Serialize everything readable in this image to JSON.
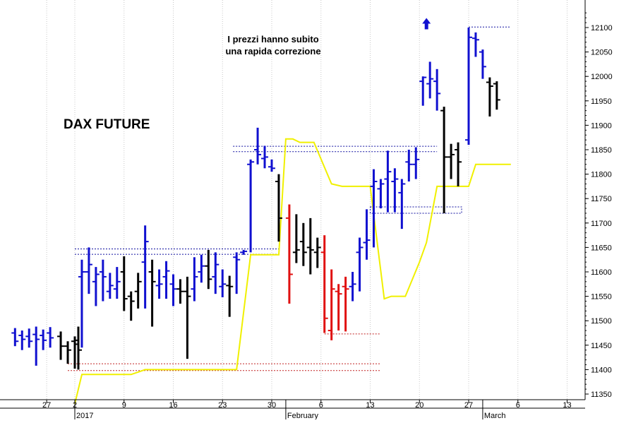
{
  "chart_data": {
    "type": "ohlc",
    "title": "DAX FUTURE",
    "annotation": "I prezzi hanno subito\nuna rapida correzione",
    "ylim": [
      11325,
      12140
    ],
    "y_ticks": [
      11350,
      11400,
      11450,
      11500,
      11550,
      11600,
      11650,
      11700,
      11750,
      11800,
      11850,
      11900,
      11950,
      12000,
      12050,
      12100
    ],
    "x_ticks": [
      {
        "day": -2,
        "label": "27"
      },
      {
        "day": 2,
        "label": "2"
      },
      {
        "day": 9,
        "label": "9"
      },
      {
        "day": 16,
        "label": "16"
      },
      {
        "day": 23,
        "label": "23"
      },
      {
        "day": 30,
        "label": "30"
      },
      {
        "day": 37,
        "label": "6"
      },
      {
        "day": 44,
        "label": "13"
      },
      {
        "day": 51,
        "label": "20"
      },
      {
        "day": 58,
        "label": "27"
      },
      {
        "day": 65,
        "label": "6"
      },
      {
        "day": 72,
        "label": "13"
      }
    ],
    "period_labels": [
      {
        "day": 2,
        "label": "2017"
      },
      {
        "day": 32,
        "label": "February"
      },
      {
        "day": 60,
        "label": "March"
      }
    ],
    "x_range": [
      -7,
      74
    ],
    "colors": {
      "blue": "#1010d0",
      "black": "#000000",
      "red": "#e01010",
      "yellow": "#f0f000",
      "grid": "#c8c8c8",
      "ref_blue": "#1010a0",
      "ref_red": "#c02020",
      "arrow": "#1010d0"
    },
    "bars": [
      {
        "day": -6.5,
        "h": 11485,
        "l": 11448,
        "o": 11475,
        "c": 11458,
        "color": "blue"
      },
      {
        "day": -5.5,
        "h": 11480,
        "l": 11440,
        "o": 11470,
        "c": 11462,
        "color": "blue"
      },
      {
        "day": -4.5,
        "h": 11484,
        "l": 11445,
        "o": 11468,
        "c": 11458,
        "color": "blue"
      },
      {
        "day": -3.5,
        "h": 11488,
        "l": 11408,
        "o": 11472,
        "c": 11462,
        "color": "blue"
      },
      {
        "day": -2.5,
        "h": 11482,
        "l": 11440,
        "o": 11470,
        "c": 11460,
        "color": "blue"
      },
      {
        "day": -1.5,
        "h": 11487,
        "l": 11445,
        "o": 11475,
        "c": 11465,
        "color": "blue"
      },
      {
        "day": 0,
        "h": 11478,
        "l": 11420,
        "o": 11468,
        "c": 11448,
        "color": "black"
      },
      {
        "day": 1,
        "h": 11458,
        "l": 11412,
        "o": 11448,
        "c": 11440,
        "color": "black"
      },
      {
        "day": 2,
        "h": 11468,
        "l": 11402,
        "o": 11458,
        "c": 11452,
        "color": "black"
      },
      {
        "day": 2.5,
        "h": 11488,
        "l": 11400,
        "o": 11460,
        "c": 11440,
        "color": "black"
      },
      {
        "day": 3,
        "h": 11625,
        "l": 11445,
        "o": 11590,
        "c": 11600,
        "color": "blue"
      },
      {
        "day": 4,
        "h": 11650,
        "l": 11555,
        "o": 11600,
        "c": 11615,
        "color": "blue"
      },
      {
        "day": 5,
        "h": 11610,
        "l": 11530,
        "o": 11580,
        "c": 11595,
        "color": "blue"
      },
      {
        "day": 6,
        "h": 11625,
        "l": 11540,
        "o": 11600,
        "c": 11590,
        "color": "blue"
      },
      {
        "day": 7,
        "h": 11598,
        "l": 11545,
        "o": 11560,
        "c": 11572,
        "color": "blue"
      },
      {
        "day": 8,
        "h": 11610,
        "l": 11545,
        "o": 11565,
        "c": 11580,
        "color": "blue"
      },
      {
        "day": 9,
        "h": 11632,
        "l": 11520,
        "o": 11600,
        "c": 11545,
        "color": "black"
      },
      {
        "day": 10,
        "h": 11560,
        "l": 11500,
        "o": 11550,
        "c": 11540,
        "color": "black"
      },
      {
        "day": 11,
        "h": 11598,
        "l": 11525,
        "o": 11560,
        "c": 11580,
        "color": "black"
      },
      {
        "day": 12,
        "h": 11695,
        "l": 11525,
        "o": 11620,
        "c": 11662,
        "color": "blue"
      },
      {
        "day": 13,
        "h": 11625,
        "l": 11488,
        "o": 11600,
        "c": 11580,
        "color": "black"
      },
      {
        "day": 14,
        "h": 11605,
        "l": 11545,
        "o": 11572,
        "c": 11575,
        "color": "blue"
      },
      {
        "day": 15,
        "h": 11622,
        "l": 11545,
        "o": 11590,
        "c": 11602,
        "color": "blue"
      },
      {
        "day": 16,
        "h": 11595,
        "l": 11530,
        "o": 11575,
        "c": 11565,
        "color": "blue"
      },
      {
        "day": 17,
        "h": 11585,
        "l": 11535,
        "o": 11565,
        "c": 11560,
        "color": "black"
      },
      {
        "day": 18,
        "h": 11590,
        "l": 11422,
        "o": 11560,
        "c": 11550,
        "color": "black"
      },
      {
        "day": 19,
        "h": 11630,
        "l": 11540,
        "o": 11565,
        "c": 11590,
        "color": "blue"
      },
      {
        "day": 20,
        "h": 11635,
        "l": 11578,
        "o": 11600,
        "c": 11612,
        "color": "blue"
      },
      {
        "day": 21,
        "h": 11645,
        "l": 11565,
        "o": 11612,
        "c": 11585,
        "color": "black"
      },
      {
        "day": 22,
        "h": 11640,
        "l": 11555,
        "o": 11590,
        "c": 11615,
        "color": "blue"
      },
      {
        "day": 23,
        "h": 11605,
        "l": 11548,
        "o": 11570,
        "c": 11575,
        "color": "blue"
      },
      {
        "day": 24,
        "h": 11592,
        "l": 11508,
        "o": 11572,
        "c": 11570,
        "color": "black"
      },
      {
        "day": 25,
        "h": 11640,
        "l": 11555,
        "o": 11630,
        "c": 11625,
        "color": "blue"
      },
      {
        "day": 26,
        "h": 11645,
        "l": 11635,
        "o": 11640,
        "c": 11642,
        "color": "blue"
      },
      {
        "day": 27,
        "h": 11830,
        "l": 11640,
        "o": 11820,
        "c": 11825,
        "color": "blue"
      },
      {
        "day": 28,
        "h": 11895,
        "l": 11820,
        "o": 11850,
        "c": 11840,
        "color": "blue"
      },
      {
        "day": 29,
        "h": 11858,
        "l": 11812,
        "o": 11832,
        "c": 11835,
        "color": "blue"
      },
      {
        "day": 30,
        "h": 11830,
        "l": 11805,
        "o": 11815,
        "c": 11812,
        "color": "blue"
      },
      {
        "day": 31,
        "h": 11800,
        "l": 11662,
        "o": 11785,
        "c": 11710,
        "color": "black"
      },
      {
        "day": 32.5,
        "h": 11738,
        "l": 11535,
        "o": 11710,
        "c": 11595,
        "color": "red"
      },
      {
        "day": 33.5,
        "h": 11718,
        "l": 11618,
        "o": 11640,
        "c": 11645,
        "color": "black"
      },
      {
        "day": 34.5,
        "h": 11700,
        "l": 11612,
        "o": 11662,
        "c": 11640,
        "color": "black"
      },
      {
        "day": 35.5,
        "h": 11710,
        "l": 11595,
        "o": 11650,
        "c": 11645,
        "color": "black"
      },
      {
        "day": 36.5,
        "h": 11670,
        "l": 11608,
        "o": 11640,
        "c": 11650,
        "color": "black"
      },
      {
        "day": 37.5,
        "h": 11675,
        "l": 11475,
        "o": 11640,
        "c": 11505,
        "color": "red"
      },
      {
        "day": 38.5,
        "h": 11605,
        "l": 11460,
        "o": 11480,
        "c": 11565,
        "color": "red"
      },
      {
        "day": 39.5,
        "h": 11575,
        "l": 11480,
        "o": 11560,
        "c": 11555,
        "color": "red"
      },
      {
        "day": 40.5,
        "h": 11590,
        "l": 11478,
        "o": 11570,
        "c": 11565,
        "color": "red"
      },
      {
        "day": 41.5,
        "h": 11600,
        "l": 11540,
        "o": 11570,
        "c": 11575,
        "color": "blue"
      },
      {
        "day": 42.5,
        "h": 11670,
        "l": 11560,
        "o": 11640,
        "c": 11650,
        "color": "blue"
      },
      {
        "day": 43.5,
        "h": 11728,
        "l": 11625,
        "o": 11660,
        "c": 11665,
        "color": "blue"
      },
      {
        "day": 44.5,
        "h": 11810,
        "l": 11650,
        "o": 11775,
        "c": 11785,
        "color": "blue"
      },
      {
        "day": 45.5,
        "h": 11790,
        "l": 11730,
        "o": 11770,
        "c": 11780,
        "color": "blue"
      },
      {
        "day": 46.5,
        "h": 11848,
        "l": 11722,
        "o": 11790,
        "c": 11805,
        "color": "blue"
      },
      {
        "day": 47.5,
        "h": 11812,
        "l": 11722,
        "o": 11785,
        "c": 11790,
        "color": "blue"
      },
      {
        "day": 48.5,
        "h": 11790,
        "l": 11688,
        "o": 11762,
        "c": 11780,
        "color": "blue"
      },
      {
        "day": 49.5,
        "h": 11850,
        "l": 11785,
        "o": 11825,
        "c": 11820,
        "color": "blue"
      },
      {
        "day": 50.5,
        "h": 11855,
        "l": 11790,
        "o": 11820,
        "c": 11830,
        "color": "blue"
      },
      {
        "day": 51.5,
        "h": 12000,
        "l": 11940,
        "o": 11990,
        "c": 11998,
        "color": "blue"
      },
      {
        "day": 52.5,
        "h": 12030,
        "l": 11955,
        "o": 11985,
        "c": 11995,
        "color": "blue"
      },
      {
        "day": 53.5,
        "h": 12015,
        "l": 11930,
        "o": 11990,
        "c": 11965,
        "color": "blue"
      },
      {
        "day": 54.5,
        "h": 11938,
        "l": 11720,
        "o": 11930,
        "c": 11835,
        "color": "black"
      },
      {
        "day": 55.5,
        "h": 11862,
        "l": 11790,
        "o": 11835,
        "c": 11840,
        "color": "black"
      },
      {
        "day": 56.5,
        "h": 11865,
        "l": 11775,
        "o": 11850,
        "c": 11825,
        "color": "black"
      },
      {
        "day": 58,
        "h": 12100,
        "l": 11860,
        "o": 11870,
        "c": 12080,
        "color": "blue"
      },
      {
        "day": 59,
        "h": 12090,
        "l": 12040,
        "o": 12078,
        "c": 12075,
        "color": "blue"
      },
      {
        "day": 60,
        "h": 12055,
        "l": 11995,
        "o": 12050,
        "c": 12020,
        "color": "blue"
      },
      {
        "day": 61,
        "h": 11998,
        "l": 11918,
        "o": 11988,
        "c": 11980,
        "color": "black"
      },
      {
        "day": 62,
        "h": 11990,
        "l": 11932,
        "o": 11985,
        "c": 11952,
        "color": "black"
      }
    ],
    "yellow_line": [
      {
        "day": 2,
        "v": 11330
      },
      {
        "day": 3,
        "v": 11390
      },
      {
        "day": 10,
        "v": 11390
      },
      {
        "day": 11,
        "v": 11395
      },
      {
        "day": 12,
        "v": 11400
      },
      {
        "day": 25,
        "v": 11400
      },
      {
        "day": 27,
        "v": 11635
      },
      {
        "day": 31,
        "v": 11635
      },
      {
        "day": 32,
        "v": 11872
      },
      {
        "day": 33,
        "v": 11872
      },
      {
        "day": 34,
        "v": 11865
      },
      {
        "day": 36,
        "v": 11865
      },
      {
        "day": 38.5,
        "v": 11780
      },
      {
        "day": 40,
        "v": 11775
      },
      {
        "day": 44,
        "v": 11775
      },
      {
        "day": 46,
        "v": 11545
      },
      {
        "day": 47,
        "v": 11550
      },
      {
        "day": 49,
        "v": 11550
      },
      {
        "day": 51,
        "v": 11620
      },
      {
        "day": 52,
        "v": 11660
      },
      {
        "day": 53.5,
        "v": 11775
      },
      {
        "day": 58,
        "v": 11775
      },
      {
        "day": 59,
        "v": 11820
      },
      {
        "day": 64,
        "v": 11820
      }
    ],
    "ref_lines": [
      {
        "from": 2,
        "to": 31,
        "v": 11647,
        "color": "ref_blue"
      },
      {
        "from": 2,
        "to": 31,
        "v": 11636,
        "color": "ref_blue"
      },
      {
        "from": 1,
        "to": 45.5,
        "v": 11412,
        "color": "ref_red"
      },
      {
        "from": 1,
        "to": 45.5,
        "v": 11398,
        "color": "ref_red"
      },
      {
        "from": 37.5,
        "to": 45.5,
        "v": 11473,
        "color": "ref_red"
      },
      {
        "from": 24.5,
        "to": 53.5,
        "v": 11857,
        "color": "ref_blue"
      },
      {
        "from": 24.5,
        "to": 53.5,
        "v": 11846,
        "color": "ref_blue"
      },
      {
        "from": 58,
        "to": 64,
        "v": 12101,
        "color": "ref_blue"
      }
    ],
    "ref_boxes": [
      {
        "from": 44,
        "to": 57,
        "top": 11733,
        "bottom": 11720,
        "color": "ref_blue"
      }
    ],
    "arrow": {
      "day": 52,
      "v": 12108
    },
    "grid": true
  }
}
